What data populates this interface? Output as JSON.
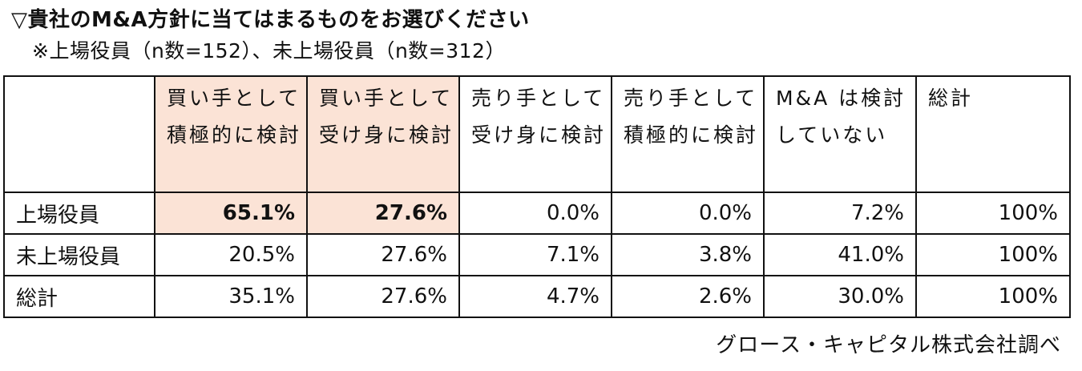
{
  "title": "▽貴社のM&A方針に当てはまるものをお選びください",
  "subtitle": "※上場役員（n数=152）、未上場役員（n数=312）",
  "table": {
    "corner": "",
    "headers": [
      "買い手として積極的に検討",
      "買い手として受け身に検討",
      "売り手として受け身に検討",
      "売り手として積極的に検討",
      "M&A は検討していない",
      "総計"
    ],
    "rows": [
      {
        "label": "上場役員",
        "values": [
          "65.1%",
          "27.6%",
          "0.0%",
          "0.0%",
          "7.2%",
          "100%"
        ]
      },
      {
        "label": "未上場役員",
        "values": [
          "20.5%",
          "27.6%",
          "7.1%",
          "3.8%",
          "41.0%",
          "100%"
        ]
      },
      {
        "label": "総計",
        "values": [
          "35.1%",
          "27.6%",
          "4.7%",
          "2.6%",
          "30.0%",
          "100%"
        ]
      }
    ],
    "highlight_color": "#fbe3d6"
  },
  "source": "グロース・キャピタル株式会社調べ"
}
